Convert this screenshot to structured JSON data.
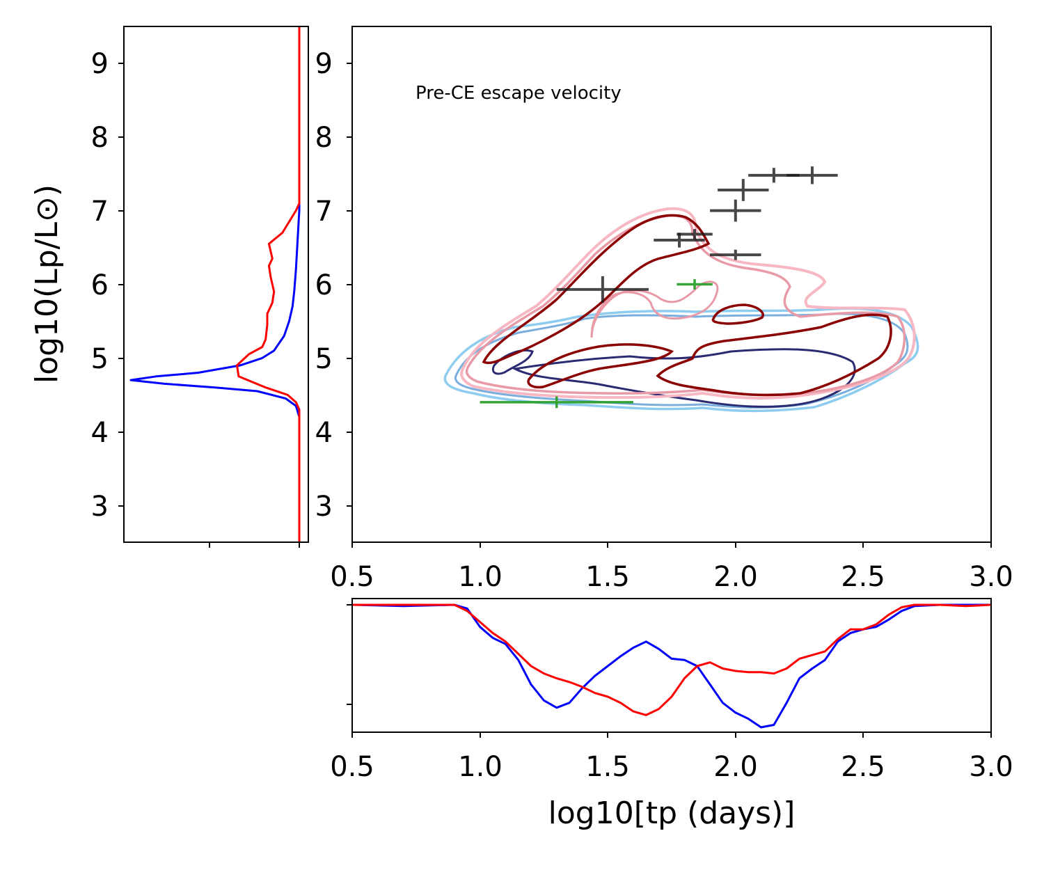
{
  "chart_data": [
    {
      "panel": "main-scatter",
      "type": "scatter",
      "annotation": "Pre-CE escape velocity",
      "xlim": [
        0.5,
        3.0
      ],
      "ylim": [
        2.5,
        9.5
      ],
      "xticks": [
        "0.5",
        "1.0",
        "1.5",
        "2.0",
        "2.5",
        "3.0"
      ],
      "yticks": [
        "3",
        "4",
        "5",
        "6",
        "7",
        "8",
        "9"
      ],
      "xlabel": "",
      "ylabel": "",
      "observations_black": [
        {
          "x": 1.48,
          "y": 5.93,
          "xerr": 0.18,
          "yerr": 0.18
        },
        {
          "x": 1.78,
          "y": 6.6,
          "xerr": 0.1,
          "yerr": 0.1
        },
        {
          "x": 1.84,
          "y": 6.68,
          "xerr": 0.07,
          "yerr": 0.07
        },
        {
          "x": 2.0,
          "y": 7.0,
          "xerr": 0.1,
          "yerr": 0.15
        },
        {
          "x": 2.0,
          "y": 6.4,
          "xerr": 0.1,
          "yerr": 0.07
        },
        {
          "x": 2.03,
          "y": 7.28,
          "xerr": 0.1,
          "yerr": 0.15
        },
        {
          "x": 2.15,
          "y": 7.48,
          "xerr": 0.1,
          "yerr": 0.1
        },
        {
          "x": 2.3,
          "y": 7.48,
          "xerr": 0.1,
          "yerr": 0.12
        }
      ],
      "observations_green": [
        {
          "x": 1.3,
          "y": 4.4,
          "xerr": 0.3,
          "yerr": 0.08
        },
        {
          "x": 1.84,
          "y": 6.0,
          "xerr": 0.07,
          "yerr": 0.07
        }
      ],
      "contour_colors": {
        "blue_outer": "#8ecdf0",
        "blue_mid": "#7aaedd",
        "blue_inner": "#2a2a72",
        "pink_outer": "#f7b7c3",
        "pink_mid": "#e89aa7",
        "red_inner": "#8b0000"
      },
      "observation_colors": {
        "black": "#1a1a1a",
        "green": "#2ca02c"
      }
    },
    {
      "panel": "left-marginal",
      "type": "line",
      "ylim": [
        2.5,
        9.5
      ],
      "yticks": [
        "3",
        "4",
        "5",
        "6",
        "7",
        "8",
        "9"
      ],
      "ylabel": "log10(Lp/L⊙)",
      "series": [
        {
          "name": "blue",
          "color": "#0000ff",
          "y": [
            2.5,
            4.2,
            4.35,
            4.45,
            4.55,
            4.6,
            4.65,
            4.7,
            4.75,
            4.8,
            4.9,
            5.0,
            5.1,
            5.3,
            5.5,
            5.7,
            5.9,
            6.2,
            6.6,
            7.0,
            9.5
          ],
          "density": [
            0,
            0,
            0.02,
            0.08,
            0.25,
            0.5,
            0.8,
            1.0,
            0.85,
            0.6,
            0.35,
            0.22,
            0.15,
            0.09,
            0.06,
            0.04,
            0.03,
            0.02,
            0.01,
            0.0,
            0
          ]
        },
        {
          "name": "red",
          "color": "#ff0000",
          "y": [
            2.5,
            4.3,
            4.4,
            4.5,
            4.6,
            4.75,
            4.9,
            5.05,
            5.15,
            5.25,
            5.45,
            5.6,
            5.75,
            5.9,
            6.1,
            6.25,
            6.35,
            6.55,
            6.7,
            6.85,
            7.0,
            7.1,
            9.5
          ],
          "density": [
            0,
            0,
            0.02,
            0.07,
            0.2,
            0.36,
            0.37,
            0.3,
            0.22,
            0.2,
            0.19,
            0.19,
            0.16,
            0.15,
            0.17,
            0.18,
            0.16,
            0.18,
            0.1,
            0.06,
            0.02,
            0.0,
            0
          ]
        }
      ]
    },
    {
      "panel": "bottom-marginal",
      "type": "line",
      "xlim": [
        0.5,
        3.0
      ],
      "xticks": [
        "0.5",
        "1.0",
        "1.5",
        "2.0",
        "2.5",
        "3.0"
      ],
      "xlabel": "log10[tp (days)]",
      "series": [
        {
          "name": "blue",
          "color": "#0000ff",
          "x": [
            0.5,
            0.7,
            0.9,
            0.95,
            1.0,
            1.05,
            1.1,
            1.15,
            1.2,
            1.25,
            1.3,
            1.35,
            1.4,
            1.45,
            1.5,
            1.55,
            1.6,
            1.65,
            1.7,
            1.75,
            1.8,
            1.85,
            1.9,
            1.95,
            2.0,
            2.05,
            2.1,
            2.15,
            2.2,
            2.25,
            2.3,
            2.35,
            2.4,
            2.45,
            2.5,
            2.55,
            2.6,
            2.65,
            2.7,
            2.8,
            2.9,
            3.0
          ],
          "y": [
            0,
            0.01,
            0.0,
            0.03,
            0.18,
            0.27,
            0.32,
            0.45,
            0.65,
            0.78,
            0.84,
            0.8,
            0.68,
            0.58,
            0.5,
            0.42,
            0.35,
            0.3,
            0.36,
            0.44,
            0.45,
            0.5,
            0.65,
            0.8,
            0.88,
            0.93,
            1.0,
            0.98,
            0.8,
            0.6,
            0.52,
            0.45,
            0.3,
            0.23,
            0.2,
            0.18,
            0.12,
            0.05,
            0.01,
            0.0,
            0.0,
            0.0
          ]
        },
        {
          "name": "red",
          "color": "#ff0000",
          "x": [
            0.5,
            0.7,
            0.9,
            0.95,
            1.0,
            1.05,
            1.1,
            1.15,
            1.2,
            1.25,
            1.3,
            1.35,
            1.4,
            1.45,
            1.5,
            1.55,
            1.6,
            1.65,
            1.7,
            1.75,
            1.8,
            1.85,
            1.9,
            1.95,
            2.0,
            2.05,
            2.1,
            2.15,
            2.2,
            2.25,
            2.3,
            2.35,
            2.4,
            2.45,
            2.5,
            2.55,
            2.6,
            2.65,
            2.7,
            2.8,
            2.9,
            3.0
          ],
          "y": [
            0,
            0.0,
            0.0,
            0.05,
            0.14,
            0.23,
            0.3,
            0.4,
            0.5,
            0.56,
            0.6,
            0.63,
            0.67,
            0.72,
            0.75,
            0.8,
            0.87,
            0.9,
            0.85,
            0.75,
            0.6,
            0.5,
            0.47,
            0.52,
            0.54,
            0.55,
            0.55,
            0.56,
            0.52,
            0.44,
            0.41,
            0.38,
            0.28,
            0.2,
            0.2,
            0.16,
            0.08,
            0.02,
            0.0,
            0.0,
            0.01,
            0.0
          ]
        }
      ]
    }
  ]
}
